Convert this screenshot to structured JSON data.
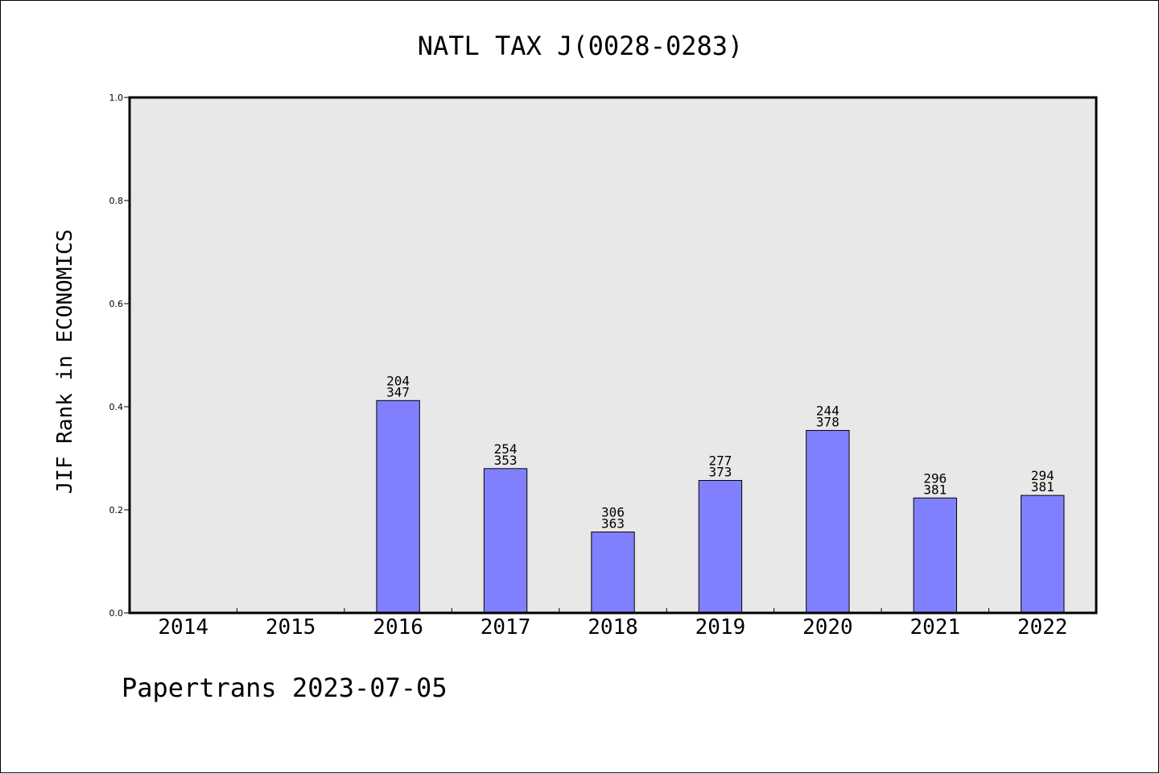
{
  "chart_data": {
    "type": "bar",
    "title": "NATL TAX J(0028-0283)",
    "xlabel": "",
    "ylabel": "JIF Rank in ECONOMICS",
    "ylim": [
      0,
      1.0
    ],
    "yticks": [
      "0.0",
      "0.2",
      "0.4",
      "0.6",
      "0.8",
      "1.0"
    ],
    "categories": [
      "2014",
      "2015",
      "2016",
      "2017",
      "2018",
      "2019",
      "2020",
      "2021",
      "2022"
    ],
    "values": [
      null,
      null,
      0.412,
      0.28,
      0.157,
      0.257,
      0.354,
      0.223,
      0.228
    ],
    "rank_labels": [
      "",
      "",
      "204",
      "254",
      "306",
      "277",
      "244",
      "296",
      "294"
    ],
    "total_labels": [
      "",
      "",
      "347",
      "353",
      "363",
      "373",
      "378",
      "381",
      "381"
    ],
    "grid": false,
    "legend": "none"
  },
  "footer": "Papertrans 2023-07-05",
  "colors": {
    "bar_fill": "#8080ff",
    "plot_background": "#e8e8e8",
    "axis": "#000000"
  }
}
